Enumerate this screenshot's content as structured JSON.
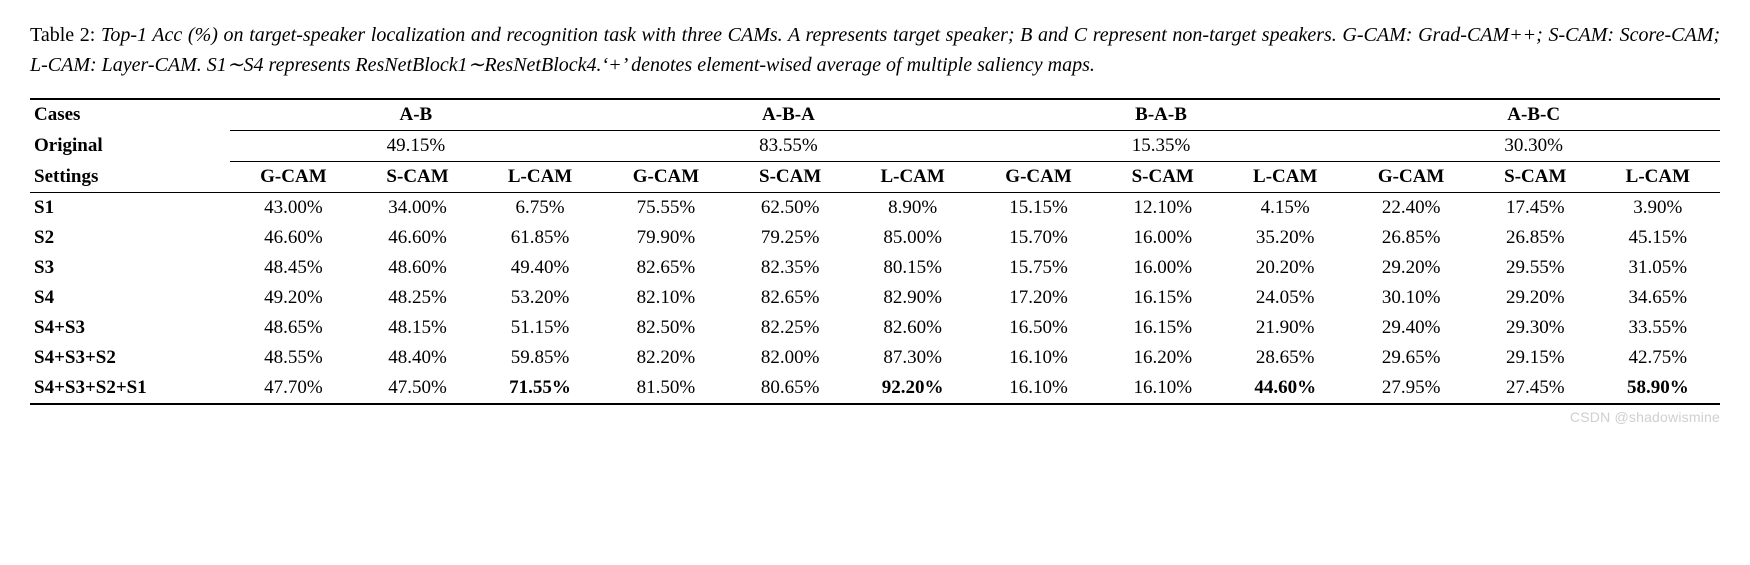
{
  "caption": {
    "label": "Table 2:",
    "body": "Top-1 Acc (%) on target-speaker localization and recognition task with three CAMs.  A represents target speaker; B and C represent non-target speakers.  G-CAM: Grad-CAM++; S-CAM: Score-CAM; L-CAM: Layer-CAM. S1∼S4 represents ResNetBlock1∼ResNetBlock4.‘+’ denotes element-wised average of multiple saliency maps."
  },
  "table": {
    "row_headers": {
      "cases": "Cases",
      "original": "Original",
      "settings": "Settings"
    },
    "groups": [
      "A-B",
      "A-B-A",
      "B-A-B",
      "A-B-C"
    ],
    "original_values": [
      "49.15%",
      "83.55%",
      "15.35%",
      "30.30%"
    ],
    "subcols": [
      "G-CAM",
      "S-CAM",
      "L-CAM"
    ],
    "rows": [
      {
        "label": "S1",
        "cells": [
          "43.00%",
          "34.00%",
          "6.75%",
          "75.55%",
          "62.50%",
          "8.90%",
          "15.15%",
          "12.10%",
          "4.15%",
          "22.40%",
          "17.45%",
          "3.90%"
        ],
        "bold": [
          false,
          false,
          false,
          false,
          false,
          false,
          false,
          false,
          false,
          false,
          false,
          false
        ]
      },
      {
        "label": "S2",
        "cells": [
          "46.60%",
          "46.60%",
          "61.85%",
          "79.90%",
          "79.25%",
          "85.00%",
          "15.70%",
          "16.00%",
          "35.20%",
          "26.85%",
          "26.85%",
          "45.15%"
        ],
        "bold": [
          false,
          false,
          false,
          false,
          false,
          false,
          false,
          false,
          false,
          false,
          false,
          false
        ]
      },
      {
        "label": "S3",
        "cells": [
          "48.45%",
          "48.60%",
          "49.40%",
          "82.65%",
          "82.35%",
          "80.15%",
          "15.75%",
          "16.00%",
          "20.20%",
          "29.20%",
          "29.55%",
          "31.05%"
        ],
        "bold": [
          false,
          false,
          false,
          false,
          false,
          false,
          false,
          false,
          false,
          false,
          false,
          false
        ]
      },
      {
        "label": "S4",
        "cells": [
          "49.20%",
          "48.25%",
          "53.20%",
          "82.10%",
          "82.65%",
          "82.90%",
          "17.20%",
          "16.15%",
          "24.05%",
          "30.10%",
          "29.20%",
          "34.65%"
        ],
        "bold": [
          false,
          false,
          false,
          false,
          false,
          false,
          false,
          false,
          false,
          false,
          false,
          false
        ]
      },
      {
        "label": "S4+S3",
        "cells": [
          "48.65%",
          "48.15%",
          "51.15%",
          "82.50%",
          "82.25%",
          "82.60%",
          "16.50%",
          "16.15%",
          "21.90%",
          "29.40%",
          "29.30%",
          "33.55%"
        ],
        "bold": [
          false,
          false,
          false,
          false,
          false,
          false,
          false,
          false,
          false,
          false,
          false,
          false
        ]
      },
      {
        "label": "S4+S3+S2",
        "cells": [
          "48.55%",
          "48.40%",
          "59.85%",
          "82.20%",
          "82.00%",
          "87.30%",
          "16.10%",
          "16.20%",
          "28.65%",
          "29.65%",
          "29.15%",
          "42.75%"
        ],
        "bold": [
          false,
          false,
          false,
          false,
          false,
          false,
          false,
          false,
          false,
          false,
          false,
          false
        ]
      },
      {
        "label": "S4+S3+S2+S1",
        "cells": [
          "47.70%",
          "47.50%",
          "71.55%",
          "81.50%",
          "80.65%",
          "92.20%",
          "16.10%",
          "16.10%",
          "44.60%",
          "27.95%",
          "27.45%",
          "58.90%"
        ],
        "bold": [
          false,
          false,
          true,
          false,
          false,
          true,
          false,
          false,
          true,
          false,
          false,
          true
        ]
      }
    ]
  },
  "watermark": "CSDN @shadowismine"
}
